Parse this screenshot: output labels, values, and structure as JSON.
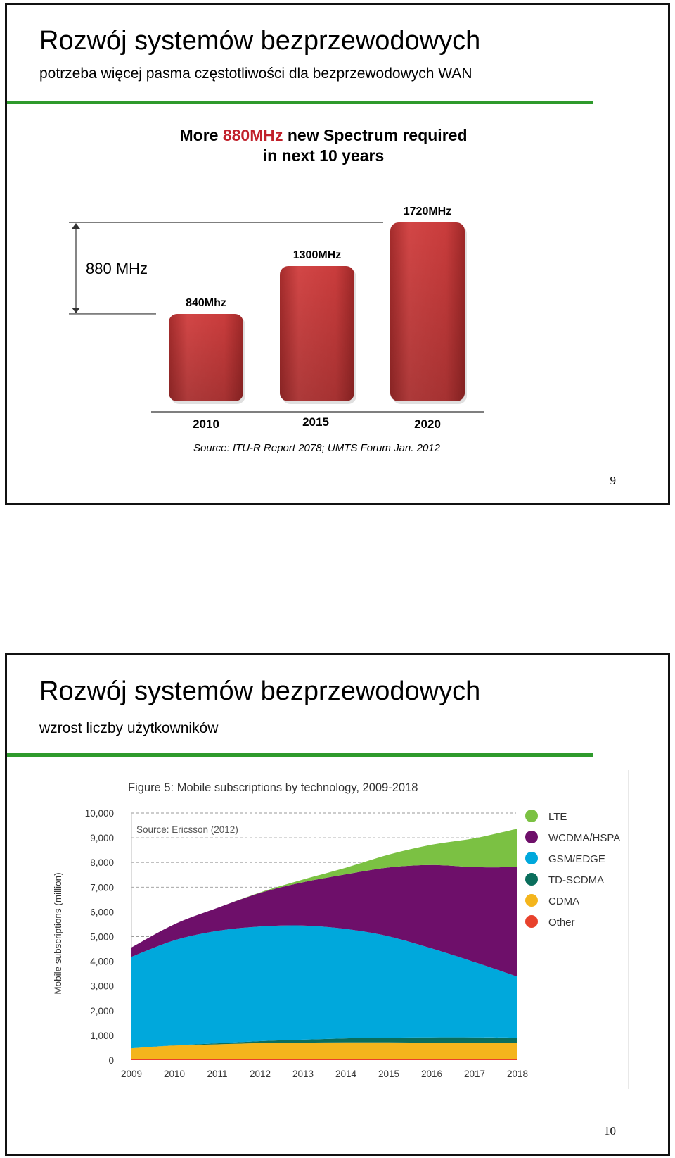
{
  "slides": [
    {
      "title": "Rozwój systemów bezprzewodowych",
      "subtitle": "potrzeba więcej pasma częstotliwości dla bezprzewodowych WAN",
      "page_number": "9"
    },
    {
      "title": "Rozwój systemów bezprzewodowych",
      "subtitle": "wzrost liczby użytkowników",
      "page_number": "10"
    }
  ],
  "colors": {
    "accent_green_rule": "#2e9a2c",
    "bar_red": "#c93c3c",
    "headline_highlight": "#c0202a"
  },
  "chart_data": [
    {
      "type": "bar",
      "title_parts": [
        "More ",
        "880MHz",
        " new Spectrum required"
      ],
      "title_line2": "in next 10 years",
      "categories": [
        "2010",
        "2015",
        "2020"
      ],
      "values": [
        840,
        1300,
        1720
      ],
      "value_labels": [
        "840Mhz",
        "1300MHz",
        "1720MHz"
      ],
      "annotation": "880 MHz",
      "source": "Source: ITU-R Report 2078; UMTS Forum Jan. 2012",
      "ylim": [
        0,
        1720
      ],
      "grid": false,
      "legend": "none"
    },
    {
      "type": "area",
      "title": "Figure 5: Mobile subscriptions by technology, 2009-2018",
      "source": "Source: Ericsson (2012)",
      "ylabel": "Mobile subscriptions (million)",
      "x": [
        "2009",
        "2010",
        "2011",
        "2012",
        "2013",
        "2014",
        "2015",
        "2016",
        "2017",
        "2018"
      ],
      "y_ticks": [
        "0",
        "1,000",
        "2,000",
        "3,000",
        "4,000",
        "5,000",
        "6,000",
        "7,000",
        "8,000",
        "9,000",
        "10,000"
      ],
      "ylim": [
        0,
        10000
      ],
      "grid": "dashed-horizontal",
      "legend": "right",
      "stacked": true,
      "series": [
        {
          "name": "Other",
          "color": "#e8412c",
          "values": [
            30,
            30,
            30,
            30,
            30,
            30,
            30,
            30,
            30,
            30
          ]
        },
        {
          "name": "CDMA",
          "color": "#f4b51c",
          "values": [
            450,
            560,
            610,
            660,
            680,
            690,
            690,
            680,
            670,
            650
          ]
        },
        {
          "name": "TD-SCDMA",
          "color": "#0a6e5c",
          "values": [
            0,
            10,
            40,
            80,
            120,
            160,
            190,
            210,
            220,
            230
          ]
        },
        {
          "name": "GSM/EDGE",
          "color": "#00a8dc",
          "values": [
            3700,
            4250,
            4550,
            4640,
            4620,
            4430,
            4100,
            3600,
            3050,
            2470
          ]
        },
        {
          "name": "WCDMA/HSPA",
          "color": "#6e0f6a",
          "values": [
            380,
            650,
            930,
            1360,
            1750,
            2210,
            2790,
            3380,
            3840,
            4430
          ]
        },
        {
          "name": "LTE",
          "color": "#7bc143",
          "values": [
            0,
            0,
            0,
            20,
            110,
            270,
            520,
            820,
            1170,
            1560
          ]
        }
      ]
    }
  ]
}
